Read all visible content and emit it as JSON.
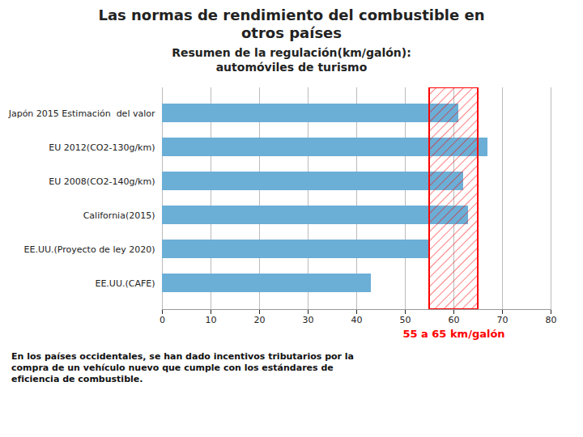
{
  "chart_data": {
    "type": "bar",
    "orientation": "horizontal",
    "title": "Las normas de rendimiento del combustible en\notros países",
    "subtitle": "Resumen de la regulación(km/galón):\nautomóviles de turismo",
    "categories": [
      "Japón 2015 Estimación  del valor",
      "EU 2012(CO2-130g/km)",
      "EU 2008(CO2-140g/km)",
      "California(2015)",
      "EE.UU.(Proyecto de ley 2020)",
      "EE.UU.(CAFE)"
    ],
    "values": [
      61,
      67,
      62,
      63,
      55,
      43
    ],
    "color": "#6baed6",
    "xlim": [
      0,
      80
    ],
    "xticks": [
      0,
      10,
      20,
      30,
      40,
      50,
      60,
      70,
      80
    ],
    "grid": true,
    "annotations": [
      {
        "x1": 55,
        "x2": 65,
        "label": "55 a 65 km/galón",
        "color": "#ff0000"
      }
    ],
    "caption": "En los países occidentales, se han dado incentivos tributarios por la\ncompra de un vehículo nuevo que cumple con los estándares de\neficiencia de combustible."
  }
}
